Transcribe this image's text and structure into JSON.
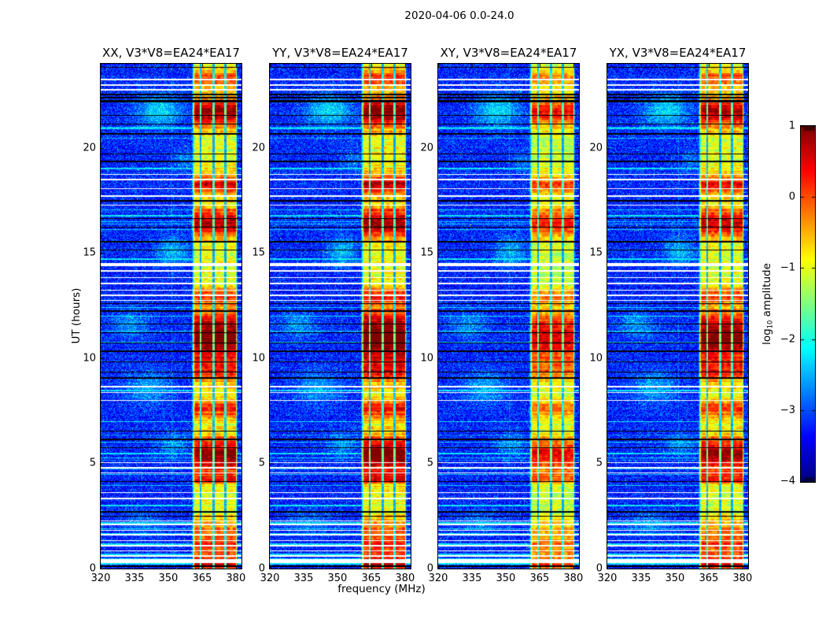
{
  "chart_data": {
    "type": "heatmap",
    "title": "2020-04-06 0.0-24.0",
    "xlabel": "frequency (MHz)",
    "ylabel": "UT (hours)",
    "layout": "four side-by-side dynamic-spectrum panels, jet colormap, colorbar at right with labels on its left",
    "x_ticks": [
      320,
      335,
      350,
      365,
      380
    ],
    "y_ticks": [
      0,
      5,
      10,
      15,
      20
    ],
    "x_range": [
      320,
      382.5
    ],
    "y_range": [
      0,
      24
    ],
    "panels": [
      {
        "title": "XX, V3*V8=EA24*EA17",
        "seed": 11,
        "band_gain": 1.0
      },
      {
        "title": "YY, V3*V8=EA24*EA17",
        "seed": 22,
        "band_gain": 1.08
      },
      {
        "title": "XY, V3*V8=EA24*EA17",
        "seed": 33,
        "band_gain": 0.8
      },
      {
        "title": "YX, V3*V8=EA24*EA17",
        "seed": 44,
        "band_gain": 0.97
      }
    ],
    "colorbar": {
      "label_parts": [
        "log",
        "10",
        " amplitude"
      ],
      "ticks": [
        1,
        0,
        -1,
        -2,
        -3,
        -4
      ],
      "range": [
        -4,
        1
      ],
      "colormap": "jet"
    },
    "features": {
      "background_log10_amplitude": -3.3,
      "rfi_band_mhz": [
        360.3,
        380.5
      ],
      "subband_separators_mhz": [
        364.1,
        369.9,
        375.1
      ],
      "faint_line_mhz": 351.5,
      "hot_intervals_ut": [
        [
          23.3,
          0.5,
          0.25
        ],
        [
          21.7,
          0.85,
          0.5
        ],
        [
          18.25,
          0.65,
          0.3
        ],
        [
          16.45,
          0.8,
          0.5
        ],
        [
          13.0,
          0.45,
          0.3
        ],
        [
          10.95,
          1.0,
          0.85
        ],
        [
          9.3,
          0.45,
          0.35
        ],
        [
          7.6,
          0.55,
          0.3
        ],
        [
          5.4,
          0.9,
          0.55
        ],
        [
          4.3,
          0.5,
          0.2
        ],
        [
          1.2,
          0.45,
          0.7
        ],
        [
          0.2,
          0.55,
          0.2
        ]
      ],
      "gap_rows_ut": [
        [
          23.25,
          2
        ],
        [
          23.0,
          2
        ],
        [
          22.75,
          2
        ],
        [
          18.75,
          1
        ],
        [
          18.5,
          2
        ],
        [
          18.1,
          1
        ],
        [
          17.7,
          2
        ],
        [
          17.3,
          1
        ],
        [
          14.45,
          4
        ],
        [
          14.15,
          2
        ],
        [
          13.85,
          1
        ],
        [
          13.55,
          2
        ],
        [
          13.25,
          1
        ],
        [
          13.0,
          2
        ],
        [
          12.75,
          1
        ],
        [
          8.65,
          2
        ],
        [
          8.4,
          1
        ],
        [
          8.0,
          1
        ],
        [
          5.05,
          1
        ],
        [
          4.8,
          2
        ],
        [
          4.55,
          1
        ],
        [
          3.65,
          1
        ],
        [
          3.35,
          2
        ],
        [
          2.3,
          1
        ],
        [
          2.1,
          2
        ],
        [
          1.85,
          1
        ],
        [
          1.6,
          2
        ],
        [
          1.35,
          1
        ],
        [
          1.1,
          2
        ],
        [
          0.85,
          1
        ],
        [
          0.6,
          2
        ],
        [
          0.38,
          5
        ]
      ],
      "masked_rows_ut": [
        [
          23.85,
          1
        ],
        [
          22.55,
          2
        ],
        [
          22.4,
          2
        ],
        [
          22.25,
          3
        ],
        [
          21.55,
          1
        ],
        [
          21.15,
          1
        ],
        [
          20.65,
          2
        ],
        [
          19.75,
          1
        ],
        [
          19.35,
          2
        ],
        [
          17.5,
          2
        ],
        [
          16.65,
          1
        ],
        [
          16.25,
          1
        ],
        [
          15.55,
          2
        ],
        [
          15.15,
          1
        ],
        [
          12.6,
          1
        ],
        [
          12.25,
          2
        ],
        [
          11.65,
          1
        ],
        [
          11.25,
          1
        ],
        [
          10.75,
          1
        ],
        [
          10.35,
          2
        ],
        [
          9.85,
          1
        ],
        [
          9.35,
          1
        ],
        [
          9.05,
          2
        ],
        [
          6.55,
          1
        ],
        [
          6.15,
          2
        ],
        [
          5.75,
          1
        ],
        [
          4.15,
          1
        ],
        [
          2.7,
          2
        ],
        [
          2.5,
          1
        ],
        [
          0.12,
          2
        ]
      ],
      "elevated_rows_ut": [
        20.95,
        19.05,
        16.8,
        14.75,
        8.5,
        5.5,
        3.05,
        2.2,
        1.7,
        1.2,
        0.7,
        0.48,
        0.25
      ],
      "background_blobs": [
        [
          21.8,
          346,
          0.55,
          7,
          1.0
        ],
        [
          15.1,
          352,
          0.5,
          5,
          0.75
        ],
        [
          11.6,
          333,
          0.5,
          6,
          0.55
        ],
        [
          8.6,
          341,
          0.6,
          7,
          0.65
        ],
        [
          5.9,
          352,
          0.4,
          5,
          0.55
        ],
        [
          19.4,
          357,
          0.35,
          4,
          0.45
        ],
        [
          2.2,
          338,
          0.4,
          6,
          0.45
        ]
      ]
    }
  }
}
